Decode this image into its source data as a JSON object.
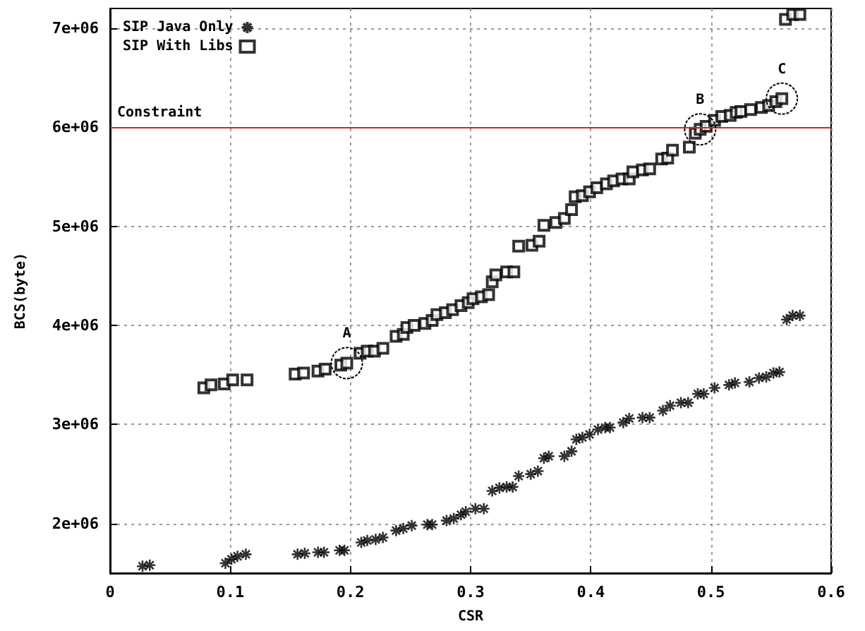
{
  "chart_data": {
    "type": "scatter",
    "xlabel": "CSR",
    "ylabel": "BCS(byte)",
    "xlim": [
      0,
      0.6
    ],
    "xticks": [
      0,
      0.1,
      0.2,
      0.3,
      0.4,
      0.5,
      0.6
    ],
    "ylim": [
      1500000,
      7200000
    ],
    "yticks": [
      {
        "value": 2000000,
        "label": "2e+06"
      },
      {
        "value": 3000000,
        "label": "3e+06"
      },
      {
        "value": 4000000,
        "label": "4e+06"
      },
      {
        "value": 5000000,
        "label": "5e+06"
      },
      {
        "value": 6000000,
        "label": "6e+06"
      },
      {
        "value": 7000000,
        "label": "7e+06"
      }
    ],
    "grid": true,
    "legend": "top left",
    "series": [
      {
        "name": "SIP Java Only",
        "color": "#000000",
        "marker": "cross",
        "x": [
          0.027,
          0.033,
          0.096,
          0.101,
          0.106,
          0.113,
          0.156,
          0.162,
          0.173,
          0.178,
          0.191,
          0.195,
          0.209,
          0.214,
          0.221,
          0.227,
          0.238,
          0.244,
          0.251,
          0.264,
          0.268,
          0.28,
          0.286,
          0.292,
          0.296,
          0.304,
          0.311,
          0.318,
          0.324,
          0.33,
          0.335,
          0.34,
          0.35,
          0.356,
          0.361,
          0.365,
          0.378,
          0.384,
          0.388,
          0.393,
          0.399,
          0.406,
          0.412,
          0.416,
          0.427,
          0.432,
          0.443,
          0.449,
          0.46,
          0.466,
          0.475,
          0.481,
          0.489,
          0.494,
          0.503,
          0.515,
          0.52,
          0.532,
          0.54,
          0.546,
          0.552,
          0.557,
          0.563,
          0.568,
          0.574
        ],
        "values": [
          1570000,
          1580000,
          1600000,
          1640000,
          1670000,
          1690000,
          1690000,
          1700000,
          1710000,
          1710000,
          1730000,
          1730000,
          1810000,
          1830000,
          1840000,
          1860000,
          1930000,
          1950000,
          1980000,
          1990000,
          1990000,
          2030000,
          2050000,
          2090000,
          2120000,
          2150000,
          2150000,
          2330000,
          2360000,
          2370000,
          2370000,
          2480000,
          2500000,
          2530000,
          2660000,
          2680000,
          2680000,
          2730000,
          2850000,
          2870000,
          2900000,
          2950000,
          2970000,
          2970000,
          3020000,
          3060000,
          3070000,
          3070000,
          3140000,
          3190000,
          3220000,
          3220000,
          3310000,
          3310000,
          3370000,
          3400000,
          3420000,
          3430000,
          3470000,
          3480000,
          3520000,
          3530000,
          4060000,
          4100000,
          4100000
        ]
      },
      {
        "name": "SIP With Libs",
        "color": "#000000",
        "marker": "square",
        "x": [
          0.078,
          0.084,
          0.095,
          0.102,
          0.114,
          0.154,
          0.161,
          0.173,
          0.179,
          0.192,
          0.197,
          0.208,
          0.214,
          0.22,
          0.227,
          0.238,
          0.244,
          0.247,
          0.253,
          0.262,
          0.268,
          0.272,
          0.279,
          0.285,
          0.292,
          0.298,
          0.302,
          0.309,
          0.315,
          0.318,
          0.321,
          0.33,
          0.336,
          0.34,
          0.351,
          0.357,
          0.361,
          0.371,
          0.378,
          0.384,
          0.387,
          0.393,
          0.399,
          0.405,
          0.413,
          0.419,
          0.426,
          0.432,
          0.435,
          0.443,
          0.449,
          0.459,
          0.464,
          0.468,
          0.482,
          0.487,
          0.491,
          0.496,
          0.503,
          0.509,
          0.516,
          0.521,
          0.525,
          0.533,
          0.542,
          0.548,
          0.554,
          0.559,
          0.562,
          0.568,
          0.574
        ],
        "values": [
          3370000,
          3400000,
          3410000,
          3450000,
          3450000,
          3510000,
          3520000,
          3540000,
          3560000,
          3600000,
          3620000,
          3720000,
          3740000,
          3740000,
          3770000,
          3890000,
          3910000,
          3980000,
          4000000,
          4020000,
          4050000,
          4110000,
          4130000,
          4160000,
          4200000,
          4230000,
          4270000,
          4290000,
          4310000,
          4440000,
          4510000,
          4540000,
          4540000,
          4800000,
          4810000,
          4850000,
          5010000,
          5040000,
          5080000,
          5170000,
          5300000,
          5310000,
          5350000,
          5390000,
          5430000,
          5460000,
          5480000,
          5480000,
          5550000,
          5570000,
          5580000,
          5680000,
          5690000,
          5770000,
          5800000,
          5940000,
          5980000,
          6010000,
          6070000,
          6110000,
          6120000,
          6150000,
          6160000,
          6180000,
          6200000,
          6220000,
          6260000,
          6290000,
          7090000,
          7140000,
          7140000
        ]
      }
    ],
    "ref_lines": [
      {
        "axis": "y",
        "value": 6000000,
        "label": "Constraint",
        "color": "#e02020"
      }
    ],
    "annotations": [
      {
        "text": "A",
        "x": 0.197,
        "y": 3620000
      },
      {
        "text": "B",
        "x": 0.491,
        "y": 5980000
      },
      {
        "text": "C",
        "x": 0.559,
        "y": 6290000
      }
    ]
  }
}
